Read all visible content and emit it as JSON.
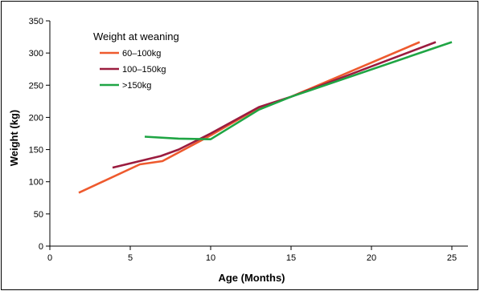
{
  "chart_data": {
    "type": "line",
    "title": "",
    "xlabel": "Age (Months)",
    "ylabel": "Weight (kg)",
    "xlim": [
      0,
      26
    ],
    "ylim": [
      0,
      350
    ],
    "xticks": [
      0,
      5,
      10,
      15,
      20,
      25
    ],
    "yticks": [
      0,
      50,
      100,
      150,
      200,
      250,
      300,
      350
    ],
    "grid": false,
    "legend": {
      "title": "Weight at weaning",
      "placement": "top-left"
    },
    "series": [
      {
        "name": "60–100kg",
        "color": "#ee5a2e",
        "points": [
          [
            1.8,
            83
          ],
          [
            5.6,
            127
          ],
          [
            7.0,
            132
          ],
          [
            10.0,
            172
          ],
          [
            13.0,
            215
          ],
          [
            15.0,
            232
          ],
          [
            23.0,
            317
          ]
        ]
      },
      {
        "name": "100–150kg",
        "color": "#9b1c3f",
        "points": [
          [
            3.9,
            122
          ],
          [
            6.9,
            140
          ],
          [
            8.0,
            150
          ],
          [
            10.0,
            175
          ],
          [
            13.0,
            216
          ],
          [
            15.0,
            232
          ],
          [
            24.0,
            317
          ]
        ]
      },
      {
        "name": ">150kg",
        "color": "#1fa544",
        "points": [
          [
            5.9,
            170
          ],
          [
            8.0,
            167
          ],
          [
            10.0,
            166
          ],
          [
            13.0,
            212
          ],
          [
            15.0,
            232
          ],
          [
            25.0,
            317
          ]
        ]
      }
    ]
  }
}
